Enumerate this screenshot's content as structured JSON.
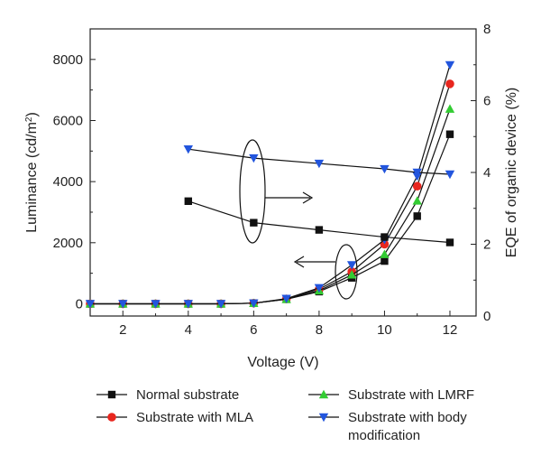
{
  "chart_data": {
    "type": "line",
    "title": "",
    "xlabel": "Voltage (V)",
    "ylabel_left": "Luminance (cd/m2)",
    "ylabel_left_main": "Luminance (cd/m",
    "ylabel_left_sup": "2",
    "ylabel_left_close": ")",
    "ylabel_right": "EQE of organic device (%)",
    "xlim": [
      1,
      12.8
    ],
    "ylim_left": [
      -400,
      9000
    ],
    "ylim_right": [
      0,
      8
    ],
    "x_ticks": [
      2,
      4,
      6,
      8,
      10,
      12
    ],
    "y_left_ticks": [
      0,
      2000,
      4000,
      6000,
      8000
    ],
    "y_right_ticks": [
      0,
      2,
      4,
      6,
      8
    ],
    "grid": false,
    "legend_position": "bottom",
    "luminance_series": [
      {
        "name": "Normal substrate",
        "color": "#111111",
        "marker": "square",
        "x": [
          1,
          2,
          3,
          4,
          5,
          6,
          7,
          8,
          9,
          10,
          11,
          12
        ],
        "y": [
          0,
          0,
          0,
          0,
          0,
          20,
          150,
          400,
          850,
          1400,
          2870,
          5550
        ]
      },
      {
        "name": "Substrate with MLA",
        "color": "#e8261e",
        "marker": "circle",
        "x": [
          1,
          2,
          3,
          4,
          5,
          6,
          7,
          8,
          9,
          10,
          11,
          12
        ],
        "y": [
          0,
          0,
          0,
          0,
          0,
          20,
          160,
          480,
          1050,
          1950,
          3850,
          7200
        ]
      },
      {
        "name": "Substrate with LMRF",
        "color": "#33cc33",
        "marker": "triangle-up",
        "x": [
          1,
          2,
          3,
          4,
          5,
          6,
          7,
          8,
          9,
          10,
          11,
          12
        ],
        "y": [
          0,
          0,
          0,
          0,
          0,
          20,
          150,
          430,
          950,
          1620,
          3370,
          6380
        ]
      },
      {
        "name": "Substrate with body modification",
        "color": "#2255dd",
        "marker": "triangle-down",
        "x": [
          1,
          2,
          3,
          4,
          5,
          6,
          7,
          8,
          9,
          10,
          11,
          12
        ],
        "y": [
          0,
          0,
          0,
          0,
          0,
          20,
          170,
          520,
          1270,
          2100,
          4180,
          7820
        ]
      }
    ],
    "eqe_series": [
      {
        "name": "Normal substrate",
        "color": "#111111",
        "marker": "square",
        "x": [
          4,
          6,
          8,
          10,
          12
        ],
        "y": [
          3.2,
          2.6,
          2.4,
          2.2,
          2.05
        ]
      },
      {
        "name": "Substrate with body modification",
        "color": "#2255dd",
        "marker": "triangle-down",
        "x": [
          4,
          6,
          8,
          10,
          11,
          12
        ],
        "y": [
          4.65,
          4.4,
          4.25,
          4.1,
          4.0,
          3.95
        ]
      }
    ],
    "legend": {
      "items": [
        {
          "label": "Normal substrate",
          "color": "#111111",
          "marker": "square"
        },
        {
          "label": "Substrate with LMRF",
          "color": "#33cc33",
          "marker": "triangle-up"
        },
        {
          "label": "Substrate with MLA",
          "color": "#e8261e",
          "marker": "circle"
        },
        {
          "label": "Substrate with body",
          "label_line2": "modification",
          "color": "#2255dd",
          "marker": "triangle-down"
        }
      ]
    }
  }
}
